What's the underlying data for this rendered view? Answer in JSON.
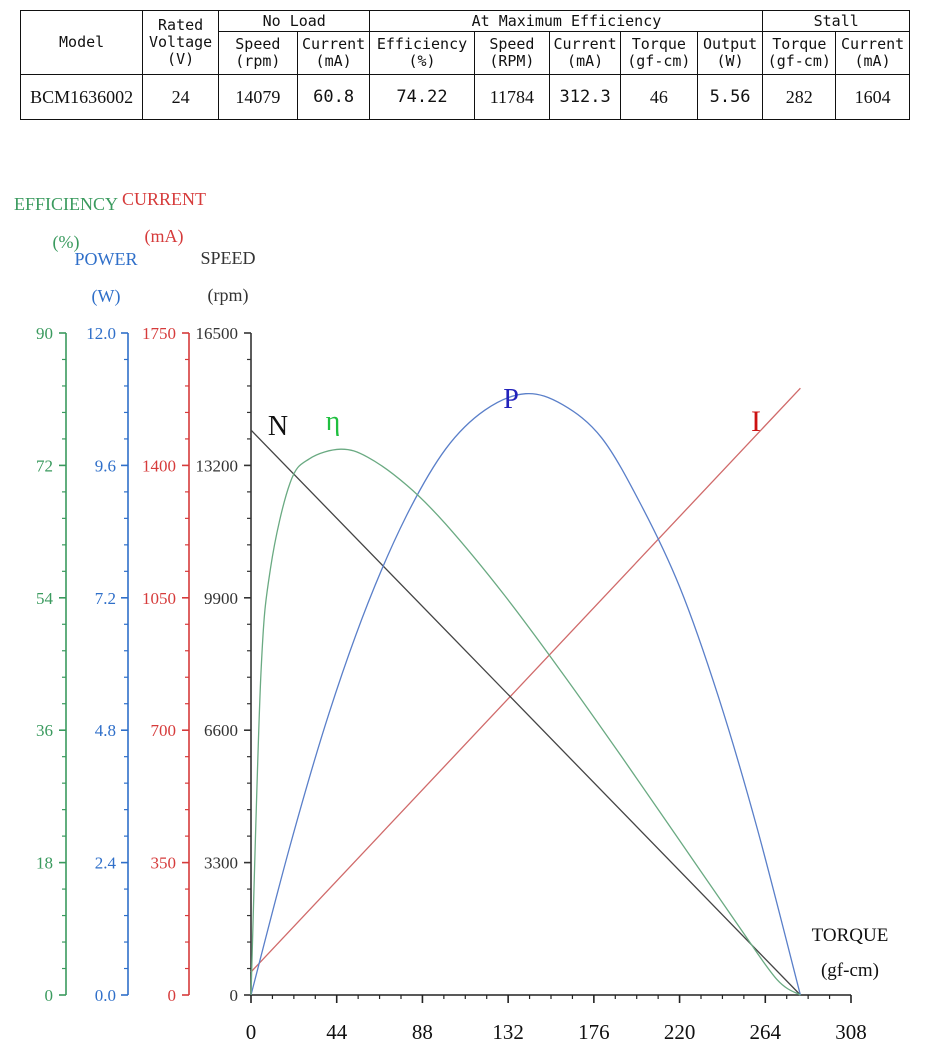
{
  "table": {
    "headers": {
      "model": "Model",
      "rated_voltage": [
        "Rated",
        "Voltage",
        "(V)"
      ],
      "groups": {
        "no_load": "No Load",
        "max_eff": "At Maximum Efficiency",
        "stall": "Stall"
      },
      "no_load": [
        {
          "name": "Speed",
          "unit": "(rpm)"
        },
        {
          "name": "Current",
          "unit": "(mA)"
        }
      ],
      "max_eff": [
        {
          "name": "Efficiency",
          "unit": "(%)"
        },
        {
          "name": "Speed",
          "unit": "(RPM)"
        },
        {
          "name": "Current",
          "unit": "(mA)"
        },
        {
          "name": "Torque",
          "unit": "(gf-cm)"
        },
        {
          "name": "Output",
          "unit": "(W)"
        }
      ],
      "stall": [
        {
          "name": "Torque",
          "unit": "(gf-cm)"
        },
        {
          "name": "Current",
          "unit": "(mA)"
        }
      ]
    },
    "row": [
      "BCM1636002",
      "24",
      "14079",
      "60.8",
      "74.22",
      "11784",
      "312.3",
      "46",
      "5.56",
      "282",
      "1604"
    ]
  },
  "chart_data": {
    "type": "line",
    "x_axis": {
      "label": "TORQUE",
      "unit": "(gf-cm)",
      "min": 0,
      "max": 308,
      "ticks": [
        "0",
        "44",
        "88",
        "132",
        "176",
        "220",
        "264",
        "308"
      ]
    },
    "y_axes": [
      {
        "id": "efficiency",
        "label": "EFFICIENCY",
        "unit": "(%)",
        "min": 0,
        "max": 90,
        "ticks": [
          "0",
          "18",
          "36",
          "54",
          "72",
          "90"
        ],
        "color": "#3a9a5e"
      },
      {
        "id": "power",
        "label": "POWER",
        "unit": "(W)",
        "min": 0,
        "max": 12,
        "ticks": [
          "0.0",
          "2.4",
          "4.8",
          "7.2",
          "9.6",
          "12.0"
        ],
        "color": "#2f6fc9"
      },
      {
        "id": "current",
        "label": "CURRENT",
        "unit": "(mA)",
        "min": 0,
        "max": 1750,
        "ticks": [
          "0",
          "350",
          "700",
          "1050",
          "1400",
          "1750"
        ],
        "color": "#d63b3b"
      },
      {
        "id": "speed",
        "label": "SPEED",
        "unit": "(rpm)",
        "min": 0,
        "max": 16500,
        "ticks": [
          "0",
          "3300",
          "6600",
          "9900",
          "13200",
          "16500"
        ],
        "color": "#333333"
      }
    ],
    "curve_labels": {
      "speed": "N",
      "efficiency": "η",
      "power": "P",
      "current": "I"
    },
    "curve_colors": {
      "speed": "#444444",
      "efficiency": "#6aaa82",
      "power": "#5a7fc9",
      "current": "#d06a6a",
      "speed_label": "#111111",
      "efficiency_label": "#1fbf3f",
      "power_label": "#2222bb",
      "current_label": "#cc1111"
    },
    "motor": {
      "no_load_speed": 14079,
      "no_load_current": 60.8,
      "stall_torque": 282,
      "stall_current": 1604
    },
    "series": {
      "speed": {
        "x": [
          0,
          282
        ],
        "y": [
          14079,
          0
        ]
      },
      "current": {
        "x": [
          0,
          282
        ],
        "y": [
          60.8,
          1604
        ]
      },
      "efficiency": {
        "x": [
          0,
          5,
          10,
          20,
          30,
          46,
          60,
          80,
          100,
          130,
          160,
          190,
          220,
          250,
          270,
          282
        ],
        "y": [
          0,
          43,
          58,
          69.6,
          72.9,
          74.2,
          73.1,
          69.3,
          64,
          54.4,
          43.7,
          32.5,
          21,
          9.5,
          2.1,
          0
        ]
      },
      "power": {
        "x": [
          0,
          20,
          40,
          60,
          80,
          100,
          120,
          141,
          160,
          180,
          200,
          220,
          240,
          260,
          282
        ],
        "y": [
          0,
          2.7,
          5.1,
          7.1,
          8.7,
          9.9,
          10.6,
          10.9,
          10.7,
          10.1,
          8.9,
          7.4,
          5.4,
          3.0,
          0
        ]
      }
    }
  }
}
